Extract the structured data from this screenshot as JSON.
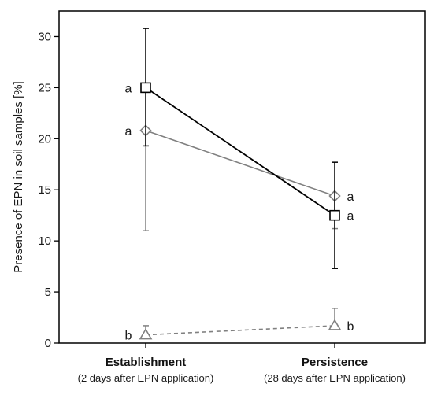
{
  "chart_data": {
    "type": "line",
    "ylabel": "Presence of EPN in soil samples [%]",
    "ylim": [
      0,
      32.5
    ],
    "yticks": [
      0,
      5,
      10,
      15,
      20,
      25,
      30
    ],
    "grid": false,
    "categories": [
      {
        "label": "Establishment",
        "sublabel": "(2 days after EPN application)"
      },
      {
        "label": "Persistence",
        "sublabel": "(28 days after EPN application)"
      }
    ],
    "series": [
      {
        "marker": "square",
        "color": "#000000",
        "dash": false,
        "values": [
          25.0,
          12.5
        ],
        "err_low": [
          5.7,
          5.2
        ],
        "err_high": [
          5.8,
          5.2
        ],
        "letters": [
          "a",
          "a"
        ]
      },
      {
        "marker": "diamond",
        "color": "#808080",
        "dash": false,
        "values": [
          20.8,
          14.4
        ],
        "err_low": [
          9.8,
          3.2
        ],
        "err_high": [
          0.0,
          0.0
        ],
        "letters": [
          "a",
          "a"
        ]
      },
      {
        "marker": "triangle",
        "color": "#808080",
        "dash": true,
        "values": [
          0.8,
          1.7
        ],
        "err_low": [
          0.0,
          0.0
        ],
        "err_high": [
          0.9,
          1.7
        ],
        "letters": [
          "b",
          "b"
        ]
      }
    ]
  }
}
